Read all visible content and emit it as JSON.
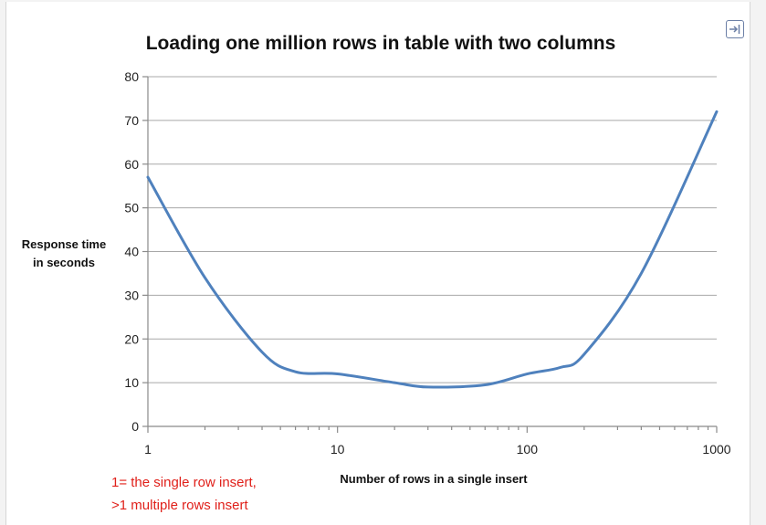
{
  "chart_data": {
    "type": "line",
    "title": "Loading one million rows in table with two columns",
    "xlabel": "Number of rows in a single insert",
    "ylabel_lines": [
      "Response time",
      "in seconds"
    ],
    "xscale": "log",
    "xlim": [
      1,
      1000
    ],
    "ylim": [
      0,
      80
    ],
    "x_ticks": [
      1,
      10,
      100,
      1000
    ],
    "x_tick_labels": [
      "1",
      "10",
      "100",
      "1000"
    ],
    "y_ticks": [
      0,
      10,
      20,
      30,
      40,
      50,
      60,
      70,
      80
    ],
    "y_tick_labels": [
      "0",
      "10",
      "20",
      "30",
      "40",
      "50",
      "60",
      "70",
      "80"
    ],
    "grid": true,
    "series": [
      {
        "name": "Response time",
        "color": "#4f81bd",
        "x": [
          1,
          2,
          4,
          6,
          10,
          20,
          30,
          60,
          100,
          150,
          200,
          400,
          1000
        ],
        "y": [
          57,
          34,
          17,
          12.5,
          12,
          10,
          9,
          9.5,
          12,
          13.5,
          16.5,
          35,
          72
        ]
      }
    ],
    "annotations": [
      "1= the single row insert,",
      ">1 multiple rows insert"
    ]
  },
  "icons": {
    "expand": "expand-icon"
  }
}
